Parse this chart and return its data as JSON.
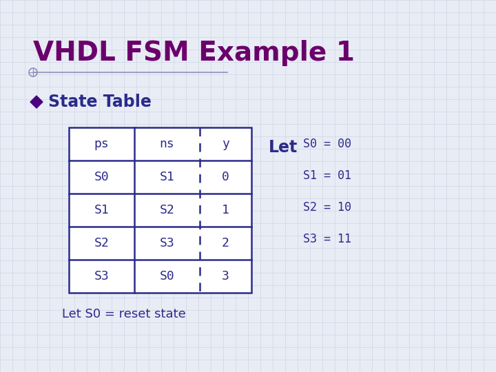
{
  "title": "VHDL FSM Example 1",
  "title_color": "#6B006B",
  "title_fontsize": 28,
  "background_color": "#E8ECF5",
  "subtitle": "State Table",
  "subtitle_color": "#2B2B8B",
  "subtitle_fontsize": 17,
  "bullet_color": "#4B0082",
  "table_headers": [
    "ps",
    "ns",
    "y"
  ],
  "table_rows": [
    [
      "S0",
      "S1",
      "0"
    ],
    [
      "S1",
      "S2",
      "1"
    ],
    [
      "S2",
      "S3",
      "2"
    ],
    [
      "S3",
      "S0",
      "3"
    ]
  ],
  "table_border_color": "#2B2B8B",
  "table_text_color": "#2B2B8B",
  "table_fontsize": 13,
  "let_label": "Let",
  "let_color": "#2B2B8B",
  "let_fontsize": 17,
  "assignments": [
    "S0 = 00",
    "S1 = 01",
    "S2 = 10",
    "S3 = 11"
  ],
  "assign_color": "#2B2B8B",
  "assign_fontsize": 12,
  "footer": "Let S0 = reset state",
  "footer_color": "#2B2B8B",
  "footer_fontsize": 13,
  "grid_color": "#c8d0e0",
  "line_color": "#9090bb",
  "circle_color": "#9090bb"
}
